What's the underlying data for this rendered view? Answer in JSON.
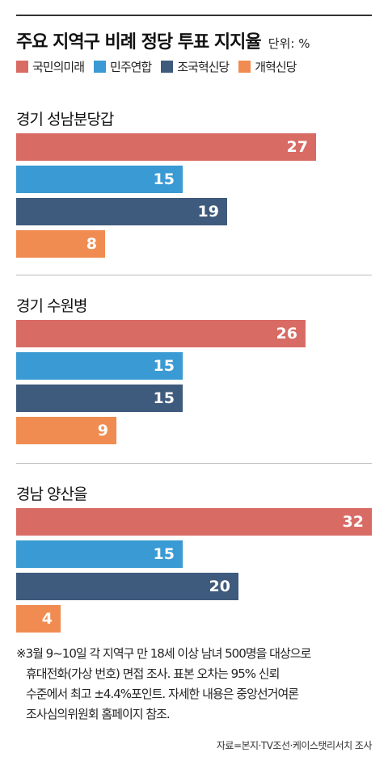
{
  "header": {
    "title": "주요 지역구 비례 정당 투표 지지율",
    "unit": "단위: %"
  },
  "legend": [
    {
      "label": "국민의미래",
      "color": "#d96b65"
    },
    {
      "label": "민주연합",
      "color": "#3a9ad3"
    },
    {
      "label": "조국혁신당",
      "color": "#3e5a7c"
    },
    {
      "label": "개혁신당",
      "color": "#f08c51"
    }
  ],
  "chart_data": {
    "type": "bar",
    "orientation": "horizontal",
    "title": "주요 지역구 비례 정당 투표 지지율",
    "unit": "%",
    "series_names": [
      "국민의미래",
      "민주연합",
      "조국혁신당",
      "개혁신당"
    ],
    "colors": [
      "#d96b65",
      "#3a9ad3",
      "#3e5a7c",
      "#f08c51"
    ],
    "scale_max": 32,
    "groups": [
      {
        "name": "경기 성남분당갑",
        "values": [
          27,
          15,
          19,
          8
        ]
      },
      {
        "name": "경기 수원병",
        "values": [
          26,
          15,
          15,
          9
        ]
      },
      {
        "name": "경남 양산을",
        "values": [
          32,
          15,
          20,
          4
        ]
      }
    ]
  },
  "footnote": {
    "lines": [
      "※3월 9~10일 각 지역구 만 18세 이상 남녀 500명을 대상으로",
      "휴대전화(가상 번호) 면접 조사. 표본 오차는 95% 신뢰",
      "수준에서 최고 ±4.4%포인트. 자세한 내용은 중앙선거여론",
      "조사심의위원회 홈페이지 참조."
    ]
  },
  "source": "자료=본지·TV조선·케이스탯리서치 조사"
}
